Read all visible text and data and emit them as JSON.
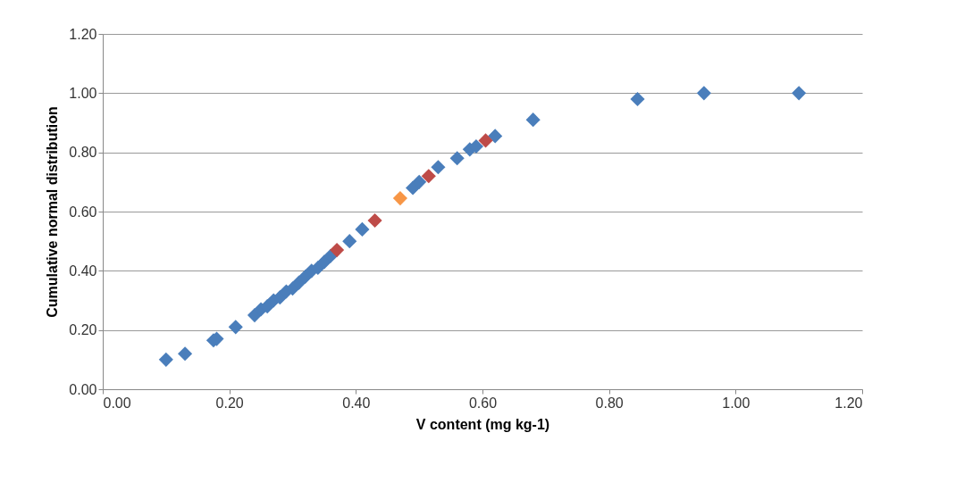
{
  "chart_data": {
    "type": "scatter",
    "xlabel": "V content (mg kg-1)",
    "ylabel": "Cumulative normal distribution",
    "xlim": [
      0,
      1.2
    ],
    "xticks": [
      {
        "value": 0,
        "label": "0.00"
      },
      {
        "value": 0.2,
        "label": "0.20"
      },
      {
        "value": 0.4,
        "label": "0.40"
      },
      {
        "value": 0.6,
        "label": "0.60"
      },
      {
        "value": 0.8,
        "label": "0.80"
      },
      {
        "value": 1.0,
        "label": "1.00"
      },
      {
        "value": 1.2,
        "label": "1.20"
      }
    ],
    "ylim": [
      0,
      1.2
    ],
    "yticks": [
      {
        "value": 0,
        "label": "0.00"
      },
      {
        "value": 0.2,
        "label": "0.20"
      },
      {
        "value": 0.4,
        "label": "0.40"
      },
      {
        "value": 0.6,
        "label": "0.60"
      },
      {
        "value": 0.8,
        "label": "0.80"
      },
      {
        "value": 1.0,
        "label": "1.00"
      },
      {
        "value": 1.2,
        "label": "1.20"
      }
    ],
    "grid": "y",
    "marker": "diamond",
    "series": [
      {
        "color": "#4a7ebb",
        "x": [
          0.1,
          0.13,
          0.175,
          0.18,
          0.21,
          0.24,
          0.25,
          0.26,
          0.27,
          0.28,
          0.29,
          0.3,
          0.31,
          0.32,
          0.33,
          0.34,
          0.35,
          0.36,
          0.39,
          0.41,
          0.49,
          0.5,
          0.53,
          0.56,
          0.58,
          0.59,
          0.62,
          0.68,
          0.845,
          0.95,
          1.1
        ],
        "values": [
          0.1,
          0.12,
          0.165,
          0.17,
          0.21,
          0.25,
          0.27,
          0.28,
          0.3,
          0.31,
          0.33,
          0.34,
          0.36,
          0.38,
          0.4,
          0.41,
          0.43,
          0.45,
          0.5,
          0.54,
          0.68,
          0.7,
          0.75,
          0.78,
          0.81,
          0.82,
          0.855,
          0.91,
          0.98,
          1.0,
          1.0
        ]
      },
      {
        "color": "#be4b48",
        "x": [
          0.37,
          0.43,
          0.515,
          0.605
        ],
        "values": [
          0.47,
          0.57,
          0.72,
          0.84
        ]
      },
      {
        "color": "#f79646",
        "x": [
          0.47
        ],
        "values": [
          0.645
        ]
      }
    ]
  }
}
